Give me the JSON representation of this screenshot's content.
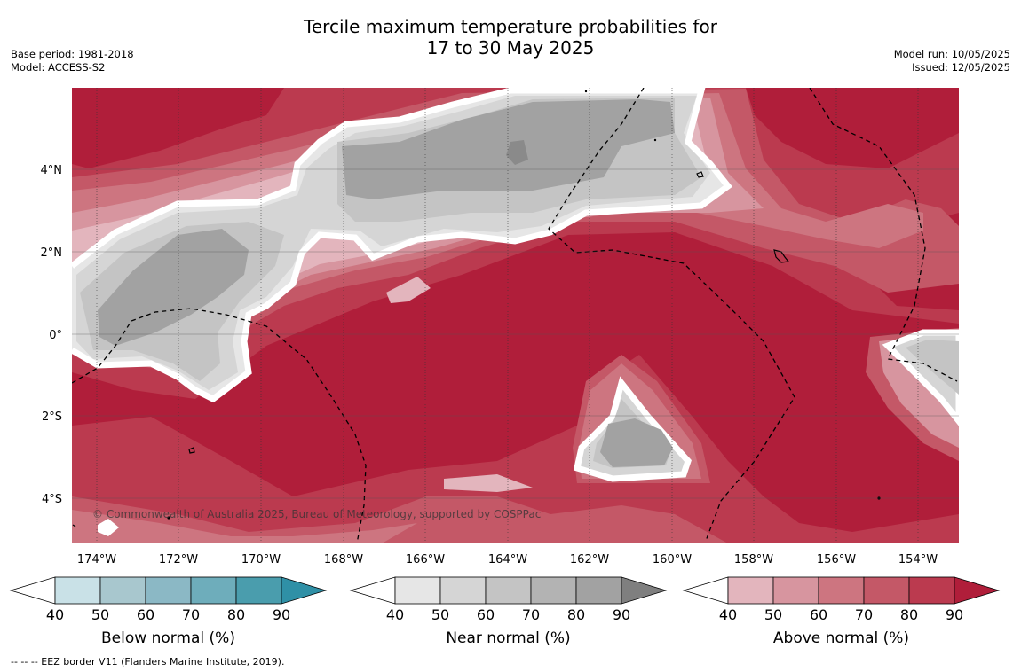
{
  "header": {
    "title_line1": "Tercile maximum temperature probabilities for",
    "title_line2": "17 to 30 May 2025",
    "base_period": "Base period: 1981-2018",
    "model": "Model: ACCESS-S2",
    "model_run": "Model run: 10/05/2025",
    "issued": "Issued: 12/05/2025"
  },
  "map": {
    "copyright": "© Commonwealth of Australia 2025, Bureau of Meteorology, supported by COSPPac",
    "lat_labels": [
      "4°N",
      "2°N",
      "0°",
      "2°S",
      "4°S"
    ],
    "lon_labels": [
      "174°W",
      "172°W",
      "170°W",
      "168°W",
      "166°W",
      "164°W",
      "162°W",
      "160°W",
      "158°W",
      "156°W",
      "154°W"
    ]
  },
  "legends": [
    {
      "name": "Below normal (%)",
      "ticks": [
        "40",
        "50",
        "60",
        "70",
        "80",
        "90"
      ],
      "colors": [
        "#c9e1e7",
        "#a8c7ce",
        "#8bb8c5",
        "#6eadbb",
        "#4a9dad",
        "#2f90a6"
      ]
    },
    {
      "name": "Near normal (%)",
      "ticks": [
        "40",
        "50",
        "60",
        "70",
        "80",
        "90"
      ],
      "colors": [
        "#e6e6e6",
        "#d5d5d5",
        "#c4c4c4",
        "#b3b3b3",
        "#a2a2a2",
        "#7f7f7f"
      ]
    },
    {
      "name": "Above normal (%)",
      "ticks": [
        "40",
        "50",
        "60",
        "70",
        "80",
        "90"
      ],
      "colors": [
        "#e3b5bd",
        "#d7959f",
        "#cd7580",
        "#c45867",
        "#bb3a4f",
        "#b01e3a"
      ]
    }
  ],
  "footnote": "--  --  -- EEZ border V11 (Flanders Marine Institute, 2019)."
}
